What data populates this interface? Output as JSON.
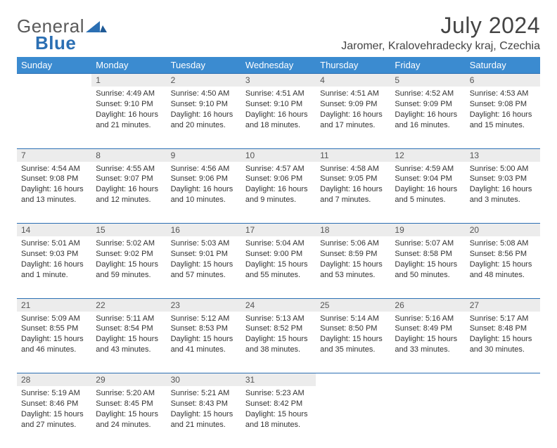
{
  "brand": {
    "word1": "General",
    "word2": "Blue"
  },
  "title": "July 2024",
  "location": "Jaromer, Kralovehradecky kraj, Czechia",
  "colors": {
    "header_bg": "#3b8bd0",
    "header_fg": "#ffffff",
    "rule": "#2b6fb3",
    "daynum_bg": "#ececec",
    "text": "#333333",
    "logo_gray": "#5a5a5a",
    "logo_blue": "#2b6fb3"
  },
  "typography": {
    "title_fontsize": 32,
    "location_fontsize": 16,
    "header_fontsize": 13,
    "daynum_fontsize": 12,
    "body_fontsize": 11
  },
  "weekdays": [
    "Sunday",
    "Monday",
    "Tuesday",
    "Wednesday",
    "Thursday",
    "Friday",
    "Saturday"
  ],
  "grid": {
    "rows": 5,
    "cols": 7,
    "first_weekday_offset": 1,
    "days_in_month": 31
  },
  "days": {
    "1": {
      "sunrise": "4:49 AM",
      "sunset": "9:10 PM",
      "daylight": "16 hours and 21 minutes."
    },
    "2": {
      "sunrise": "4:50 AM",
      "sunset": "9:10 PM",
      "daylight": "16 hours and 20 minutes."
    },
    "3": {
      "sunrise": "4:51 AM",
      "sunset": "9:10 PM",
      "daylight": "16 hours and 18 minutes."
    },
    "4": {
      "sunrise": "4:51 AM",
      "sunset": "9:09 PM",
      "daylight": "16 hours and 17 minutes."
    },
    "5": {
      "sunrise": "4:52 AM",
      "sunset": "9:09 PM",
      "daylight": "16 hours and 16 minutes."
    },
    "6": {
      "sunrise": "4:53 AM",
      "sunset": "9:08 PM",
      "daylight": "16 hours and 15 minutes."
    },
    "7": {
      "sunrise": "4:54 AM",
      "sunset": "9:08 PM",
      "daylight": "16 hours and 13 minutes."
    },
    "8": {
      "sunrise": "4:55 AM",
      "sunset": "9:07 PM",
      "daylight": "16 hours and 12 minutes."
    },
    "9": {
      "sunrise": "4:56 AM",
      "sunset": "9:06 PM",
      "daylight": "16 hours and 10 minutes."
    },
    "10": {
      "sunrise": "4:57 AM",
      "sunset": "9:06 PM",
      "daylight": "16 hours and 9 minutes."
    },
    "11": {
      "sunrise": "4:58 AM",
      "sunset": "9:05 PM",
      "daylight": "16 hours and 7 minutes."
    },
    "12": {
      "sunrise": "4:59 AM",
      "sunset": "9:04 PM",
      "daylight": "16 hours and 5 minutes."
    },
    "13": {
      "sunrise": "5:00 AM",
      "sunset": "9:03 PM",
      "daylight": "16 hours and 3 minutes."
    },
    "14": {
      "sunrise": "5:01 AM",
      "sunset": "9:03 PM",
      "daylight": "16 hours and 1 minute."
    },
    "15": {
      "sunrise": "5:02 AM",
      "sunset": "9:02 PM",
      "daylight": "15 hours and 59 minutes."
    },
    "16": {
      "sunrise": "5:03 AM",
      "sunset": "9:01 PM",
      "daylight": "15 hours and 57 minutes."
    },
    "17": {
      "sunrise": "5:04 AM",
      "sunset": "9:00 PM",
      "daylight": "15 hours and 55 minutes."
    },
    "18": {
      "sunrise": "5:06 AM",
      "sunset": "8:59 PM",
      "daylight": "15 hours and 53 minutes."
    },
    "19": {
      "sunrise": "5:07 AM",
      "sunset": "8:58 PM",
      "daylight": "15 hours and 50 minutes."
    },
    "20": {
      "sunrise": "5:08 AM",
      "sunset": "8:56 PM",
      "daylight": "15 hours and 48 minutes."
    },
    "21": {
      "sunrise": "5:09 AM",
      "sunset": "8:55 PM",
      "daylight": "15 hours and 46 minutes."
    },
    "22": {
      "sunrise": "5:11 AM",
      "sunset": "8:54 PM",
      "daylight": "15 hours and 43 minutes."
    },
    "23": {
      "sunrise": "5:12 AM",
      "sunset": "8:53 PM",
      "daylight": "15 hours and 41 minutes."
    },
    "24": {
      "sunrise": "5:13 AM",
      "sunset": "8:52 PM",
      "daylight": "15 hours and 38 minutes."
    },
    "25": {
      "sunrise": "5:14 AM",
      "sunset": "8:50 PM",
      "daylight": "15 hours and 35 minutes."
    },
    "26": {
      "sunrise": "5:16 AM",
      "sunset": "8:49 PM",
      "daylight": "15 hours and 33 minutes."
    },
    "27": {
      "sunrise": "5:17 AM",
      "sunset": "8:48 PM",
      "daylight": "15 hours and 30 minutes."
    },
    "28": {
      "sunrise": "5:19 AM",
      "sunset": "8:46 PM",
      "daylight": "15 hours and 27 minutes."
    },
    "29": {
      "sunrise": "5:20 AM",
      "sunset": "8:45 PM",
      "daylight": "15 hours and 24 minutes."
    },
    "30": {
      "sunrise": "5:21 AM",
      "sunset": "8:43 PM",
      "daylight": "15 hours and 21 minutes."
    },
    "31": {
      "sunrise": "5:23 AM",
      "sunset": "8:42 PM",
      "daylight": "15 hours and 18 minutes."
    }
  },
  "labels": {
    "sunrise": "Sunrise:",
    "sunset": "Sunset:",
    "daylight": "Daylight:"
  }
}
